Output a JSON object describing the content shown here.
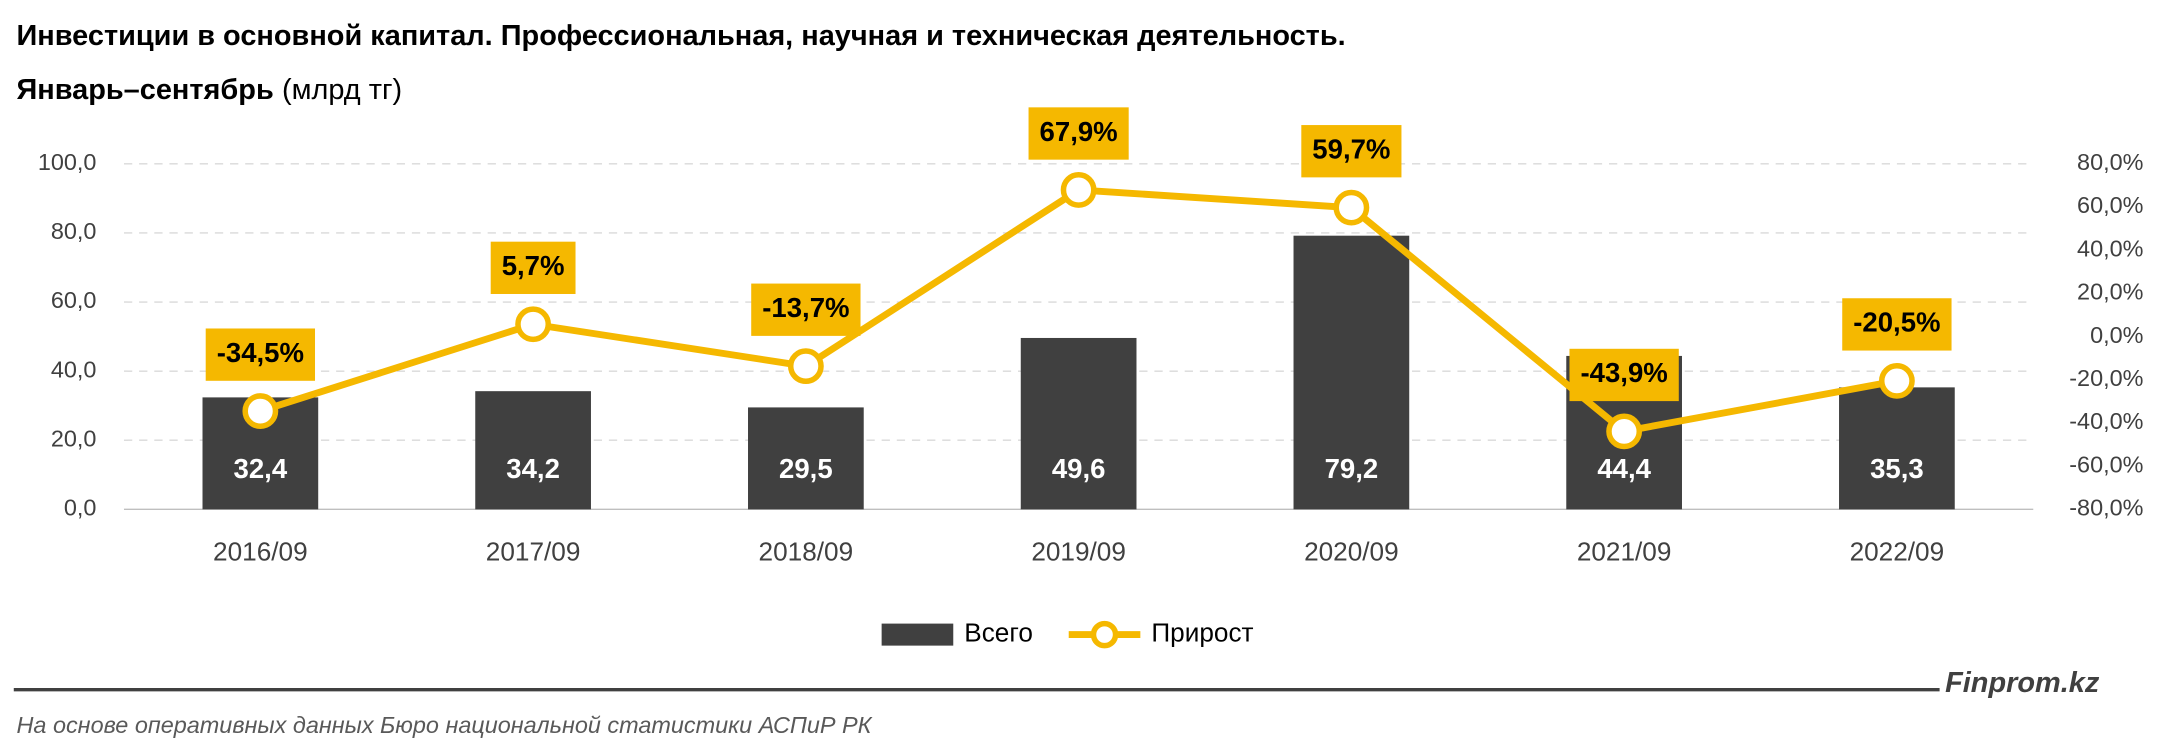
{
  "chart_data": {
    "type": "bar",
    "title": "Инвестиции в основной капитал. Профессиональная, научная и техническая деятельность.",
    "subtitle": "Январь–сентябрь",
    "unit": "(млрд тг)",
    "categories": [
      "2016/09",
      "2017/09",
      "2018/09",
      "2019/09",
      "2020/09",
      "2021/09",
      "2022/09"
    ],
    "series": [
      {
        "name": "Всего",
        "type": "bar",
        "color": "#404040",
        "values": [
          32.4,
          34.2,
          29.5,
          49.6,
          79.2,
          44.4,
          35.3
        ],
        "value_labels": [
          "32,4",
          "34,2",
          "29,5",
          "49,6",
          "79,2",
          "44,4",
          "35,3"
        ]
      },
      {
        "name": "Прирост",
        "type": "line",
        "axis": "y2",
        "color": "#f5b800",
        "values": [
          -34.5,
          5.7,
          -13.7,
          67.9,
          59.7,
          -43.9,
          -20.5
        ],
        "value_labels": [
          "-34,5%",
          "5,7%",
          "-13,7%",
          "67,9%",
          "59,7%",
          "-43,9%",
          "-20,5%"
        ]
      }
    ],
    "ylim": [
      0,
      100
    ],
    "yticks": [
      {
        "value": 0,
        "label": "0,0"
      },
      {
        "value": 20,
        "label": "20,0"
      },
      {
        "value": 40,
        "label": "40,0"
      },
      {
        "value": 60,
        "label": "60,0"
      },
      {
        "value": 80,
        "label": "80,0"
      },
      {
        "value": 100,
        "label": "100,0"
      }
    ],
    "y2lim": [
      -80,
      80
    ],
    "y2ticks": [
      {
        "value": -80,
        "label": "-80,0%"
      },
      {
        "value": -60,
        "label": "-60,0%"
      },
      {
        "value": -40,
        "label": "-40,0%"
      },
      {
        "value": -20,
        "label": "-20,0%"
      },
      {
        "value": 0,
        "label": "0,0%"
      },
      {
        "value": 20,
        "label": "20,0%"
      },
      {
        "value": 40,
        "label": "40,0%"
      },
      {
        "value": 60,
        "label": "60,0%"
      },
      {
        "value": 80,
        "label": "80,0%"
      }
    ],
    "grid": true,
    "legend": "bottom",
    "brand": "Finprom.kz",
    "source": "На основе оперативных данных Бюро национальной статистики АСПиР РК"
  }
}
